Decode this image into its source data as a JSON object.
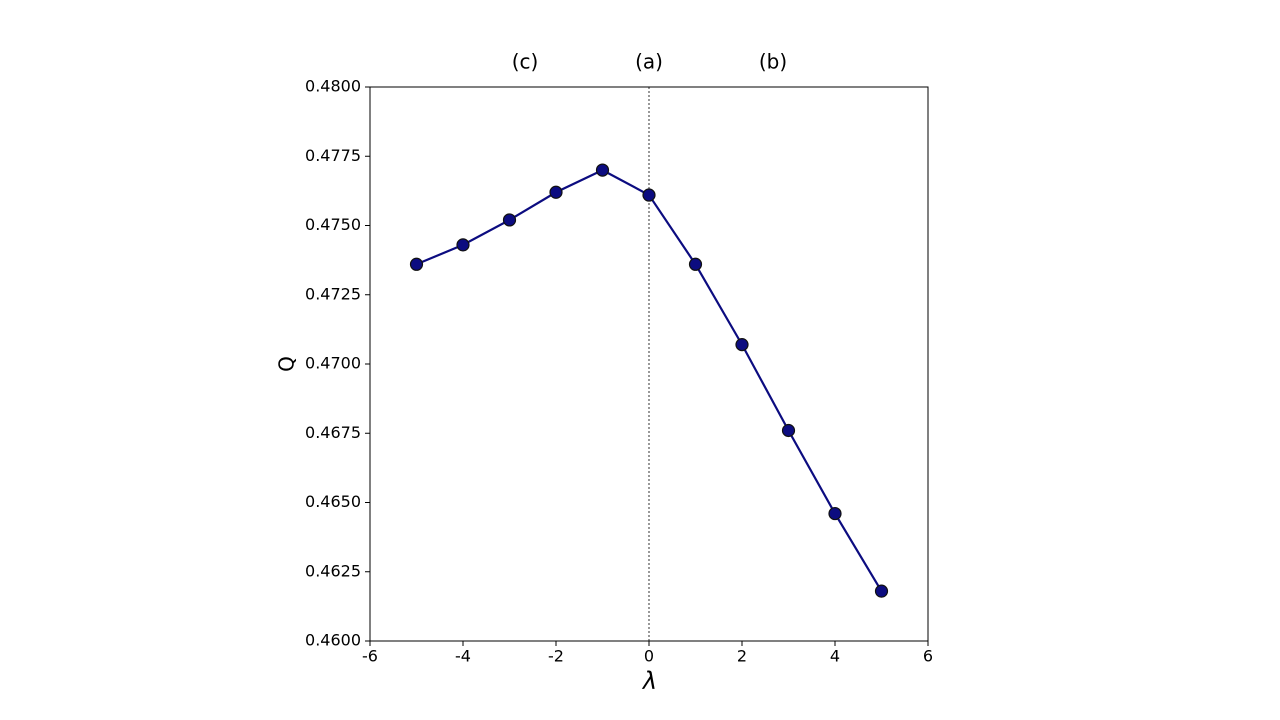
{
  "chart_data": {
    "type": "line",
    "x_label": "λ",
    "y_label": "Q",
    "annotations": [
      "(c)",
      "(a)",
      "(b)"
    ],
    "x": [
      -5,
      -4,
      -3,
      -2,
      -1,
      0,
      1,
      2,
      3,
      4,
      5
    ],
    "series": [
      {
        "name": "Q",
        "color": "#0c0c80",
        "values": [
          0.4736,
          0.4743,
          0.4752,
          0.4762,
          0.477,
          0.4761,
          0.4736,
          0.4707,
          0.4676,
          0.4646,
          0.4618
        ]
      }
    ],
    "xlim": [
      -6,
      6
    ],
    "xticks": [
      -6,
      -4,
      -2,
      0,
      2,
      4,
      6
    ],
    "ylim": [
      0.46,
      0.48
    ],
    "yticks": [
      {
        "value": 0.46,
        "label": "0.4600"
      },
      {
        "value": 0.4625,
        "label": "0.4625"
      },
      {
        "value": 0.465,
        "label": "0.4650"
      },
      {
        "value": 0.4675,
        "label": "0.4675"
      },
      {
        "value": 0.47,
        "label": "0.4700"
      },
      {
        "value": 0.4725,
        "label": "0.4725"
      },
      {
        "value": 0.475,
        "label": "0.4750"
      },
      {
        "value": 0.4775,
        "label": "0.4775"
      },
      {
        "value": 0.48,
        "label": "0.4800"
      }
    ],
    "vline": 0,
    "grid": false
  }
}
